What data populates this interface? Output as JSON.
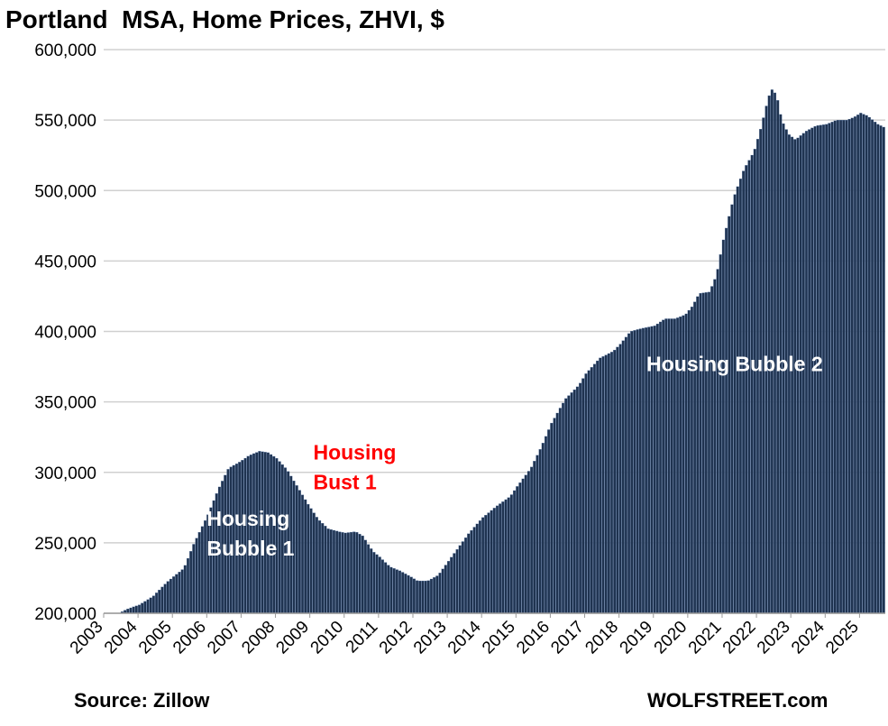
{
  "chart_data": {
    "type": "bar",
    "title": "Portland  MSA, Home Prices, ZHVI, $",
    "xlabel": "",
    "ylabel": "",
    "ylim": [
      200000,
      600000
    ],
    "y_ticks": [
      "200,000",
      "250,000",
      "300,000",
      "350,000",
      "400,000",
      "450,000",
      "500,000",
      "550,000",
      "600,000"
    ],
    "x_ticks": [
      "2003",
      "2004",
      "2005",
      "2006",
      "2007",
      "2008",
      "2009",
      "2010",
      "2011",
      "2012",
      "2013",
      "2014",
      "2015",
      "2016",
      "2017",
      "2018",
      "2019",
      "2020",
      "2021",
      "2022",
      "2023",
      "2024",
      "2025"
    ],
    "x_range": [
      2003.0,
      2025.75
    ],
    "grid": true,
    "bar_color": "#1f3350",
    "monthly_start": "2003-01",
    "anchors": [
      [
        2003.0,
        200000
      ],
      [
        2003.4,
        200000
      ],
      [
        2003.65,
        203000
      ],
      [
        2004.0,
        206000
      ],
      [
        2004.4,
        212000
      ],
      [
        2004.8,
        222000
      ],
      [
        2005.0,
        226000
      ],
      [
        2005.3,
        232000
      ],
      [
        2005.6,
        250000
      ],
      [
        2006.0,
        270000
      ],
      [
        2006.3,
        288000
      ],
      [
        2006.6,
        303000
      ],
      [
        2006.9,
        307000
      ],
      [
        2007.2,
        312000
      ],
      [
        2007.5,
        315000
      ],
      [
        2007.75,
        314000
      ],
      [
        2008.0,
        310000
      ],
      [
        2008.3,
        302000
      ],
      [
        2008.6,
        290000
      ],
      [
        2008.9,
        278000
      ],
      [
        2009.2,
        267000
      ],
      [
        2009.5,
        260000
      ],
      [
        2009.8,
        258000
      ],
      [
        2010.0,
        257000
      ],
      [
        2010.3,
        258000
      ],
      [
        2010.5,
        255000
      ],
      [
        2010.8,
        244000
      ],
      [
        2011.0,
        240000
      ],
      [
        2011.3,
        233000
      ],
      [
        2011.6,
        230000
      ],
      [
        2011.9,
        226000
      ],
      [
        2012.1,
        223000
      ],
      [
        2012.4,
        223000
      ],
      [
        2012.7,
        227000
      ],
      [
        2013.0,
        237000
      ],
      [
        2013.3,
        247000
      ],
      [
        2013.6,
        257000
      ],
      [
        2014.0,
        268000
      ],
      [
        2014.4,
        276000
      ],
      [
        2014.8,
        283000
      ],
      [
        2015.0,
        290000
      ],
      [
        2015.4,
        303000
      ],
      [
        2015.7,
        318000
      ],
      [
        2016.0,
        335000
      ],
      [
        2016.4,
        352000
      ],
      [
        2016.8,
        362000
      ],
      [
        2017.0,
        370000
      ],
      [
        2017.4,
        381000
      ],
      [
        2017.8,
        386000
      ],
      [
        2018.0,
        391000
      ],
      [
        2018.3,
        400000
      ],
      [
        2018.6,
        402000
      ],
      [
        2019.0,
        404000
      ],
      [
        2019.3,
        409000
      ],
      [
        2019.6,
        409000
      ],
      [
        2019.9,
        412000
      ],
      [
        2020.1,
        418000
      ],
      [
        2020.3,
        427000
      ],
      [
        2020.6,
        428000
      ],
      [
        2020.8,
        440000
      ],
      [
        2021.0,
        465000
      ],
      [
        2021.3,
        495000
      ],
      [
        2021.6,
        515000
      ],
      [
        2021.9,
        528000
      ],
      [
        2022.1,
        545000
      ],
      [
        2022.3,
        565000
      ],
      [
        2022.4,
        572000
      ],
      [
        2022.55,
        568000
      ],
      [
        2022.7,
        550000
      ],
      [
        2022.9,
        540000
      ],
      [
        2023.1,
        536000
      ],
      [
        2023.4,
        542000
      ],
      [
        2023.7,
        546000
      ],
      [
        2024.0,
        547000
      ],
      [
        2024.3,
        550000
      ],
      [
        2024.6,
        550000
      ],
      [
        2024.8,
        552000
      ],
      [
        2025.0,
        555000
      ],
      [
        2025.2,
        553000
      ],
      [
        2025.5,
        547000
      ],
      [
        2025.75,
        544000
      ]
    ],
    "annotations": [
      {
        "id": "housing-bubble-1",
        "lines": [
          "Housing",
          "Bubble 1"
        ],
        "color": "#ffffff",
        "x": 2006.0,
        "y": 262000
      },
      {
        "id": "housing-bust-1",
        "lines": [
          "Housing",
          "Bust 1"
        ],
        "color": "#ff0000",
        "x": 2009.1,
        "y": 309000
      },
      {
        "id": "housing-bubble-2",
        "lines": [
          "Housing Bubble 2"
        ],
        "color": "#ffffff",
        "x": 2018.8,
        "y": 372000
      }
    ]
  },
  "footer": {
    "source": "Source: Zillow",
    "brand": "WOLFSTREET.com"
  }
}
